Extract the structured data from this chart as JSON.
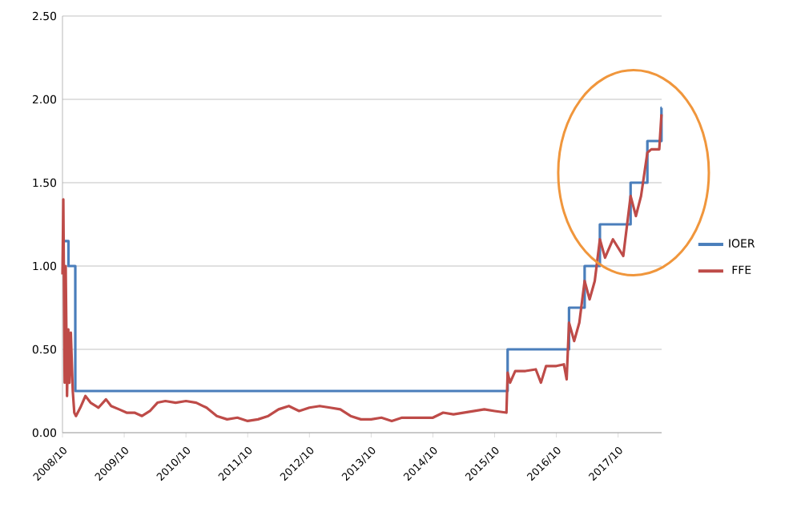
{
  "chart_data": {
    "type": "line",
    "xlim": [
      "2008-10-01",
      "2018-06-15"
    ],
    "xticks": [
      {
        "value": "2008-10-01",
        "label": "2008/10"
      },
      {
        "value": "2009-10-01",
        "label": "2009/10"
      },
      {
        "value": "2010-10-01",
        "label": "2010/10"
      },
      {
        "value": "2011-10-01",
        "label": "2011/10"
      },
      {
        "value": "2012-10-01",
        "label": "2012/10"
      },
      {
        "value": "2013-10-01",
        "label": "2013/10"
      },
      {
        "value": "2014-10-01",
        "label": "2014/10"
      },
      {
        "value": "2015-10-01",
        "label": "2015/10"
      },
      {
        "value": "2016-10-01",
        "label": "2016/10"
      },
      {
        "value": "2017-10-01",
        "label": "2017/10"
      }
    ],
    "ylim": [
      0,
      2.5
    ],
    "yticks": [
      {
        "value": 0,
        "label": "0.00"
      },
      {
        "value": 0.5,
        "label": "0.50"
      },
      {
        "value": 1,
        "label": "1.00"
      },
      {
        "value": 1.5,
        "label": "1.50"
      },
      {
        "value": 2,
        "label": "2.00"
      },
      {
        "value": 2.5,
        "label": "2.50"
      }
    ],
    "grid": "y",
    "legend": "right",
    "series": [
      {
        "name": "IOER",
        "type": "step",
        "color": "#4a7ebb",
        "x": [
          "2008-10-01",
          "2008-11-06",
          "2008-12-16",
          "2015-12-17",
          "2016-12-15",
          "2017-03-16",
          "2017-06-15",
          "2017-12-14",
          "2018-03-22",
          "2018-06-14",
          "2018-06-15"
        ],
        "values": [
          1.15,
          1.0,
          0.25,
          0.5,
          0.75,
          1.0,
          1.25,
          1.5,
          1.75,
          1.95,
          1.95
        ]
      },
      {
        "name": "FFE",
        "color": "#be4b48",
        "x": [
          "2008-10-01",
          "2008-10-06",
          "2008-10-14",
          "2008-10-20",
          "2008-10-28",
          "2008-11-05",
          "2008-11-12",
          "2008-11-20",
          "2008-12-01",
          "2008-12-10",
          "2008-12-20",
          "2009-01-15",
          "2009-02-15",
          "2009-03-15",
          "2009-05-01",
          "2009-06-15",
          "2009-07-15",
          "2009-09-01",
          "2009-10-15",
          "2009-12-01",
          "2010-01-15",
          "2010-03-01",
          "2010-04-15",
          "2010-06-01",
          "2010-08-01",
          "2010-10-01",
          "2010-12-01",
          "2011-02-01",
          "2011-04-01",
          "2011-06-01",
          "2011-08-01",
          "2011-10-01",
          "2011-12-01",
          "2012-02-01",
          "2012-04-01",
          "2012-06-01",
          "2012-08-01",
          "2012-10-01",
          "2012-12-01",
          "2013-02-01",
          "2013-04-01",
          "2013-06-01",
          "2013-08-01",
          "2013-10-01",
          "2013-12-01",
          "2014-02-01",
          "2014-04-01",
          "2014-06-01",
          "2014-08-01",
          "2014-10-01",
          "2014-12-01",
          "2015-02-01",
          "2015-04-01",
          "2015-06-01",
          "2015-08-01",
          "2015-10-01",
          "2015-12-10",
          "2015-12-17",
          "2016-01-01",
          "2016-02-01",
          "2016-04-01",
          "2016-06-01",
          "2016-07-01",
          "2016-08-01",
          "2016-10-01",
          "2016-11-15",
          "2016-12-01",
          "2016-12-15",
          "2017-01-15",
          "2017-02-15",
          "2017-03-16",
          "2017-04-15",
          "2017-05-15",
          "2017-06-15",
          "2017-07-15",
          "2017-09-01",
          "2017-11-01",
          "2017-12-14",
          "2018-01-15",
          "2018-02-15",
          "2018-03-22",
          "2018-04-15",
          "2018-06-01",
          "2018-06-14"
        ],
        "values": [
          0.95,
          1.4,
          0.3,
          1.0,
          0.22,
          0.62,
          0.3,
          0.6,
          0.25,
          0.12,
          0.1,
          0.15,
          0.22,
          0.18,
          0.15,
          0.2,
          0.16,
          0.14,
          0.12,
          0.12,
          0.1,
          0.13,
          0.18,
          0.19,
          0.18,
          0.19,
          0.18,
          0.15,
          0.1,
          0.08,
          0.09,
          0.07,
          0.08,
          0.1,
          0.14,
          0.16,
          0.13,
          0.15,
          0.16,
          0.15,
          0.14,
          0.1,
          0.08,
          0.08,
          0.09,
          0.07,
          0.09,
          0.09,
          0.09,
          0.09,
          0.12,
          0.11,
          0.12,
          0.13,
          0.14,
          0.13,
          0.12,
          0.36,
          0.3,
          0.37,
          0.37,
          0.38,
          0.3,
          0.4,
          0.4,
          0.41,
          0.32,
          0.66,
          0.55,
          0.66,
          0.91,
          0.8,
          0.91,
          1.16,
          1.05,
          1.16,
          1.06,
          1.42,
          1.3,
          1.42,
          1.68,
          1.7,
          1.7,
          1.91
        ]
      }
    ]
  }
}
